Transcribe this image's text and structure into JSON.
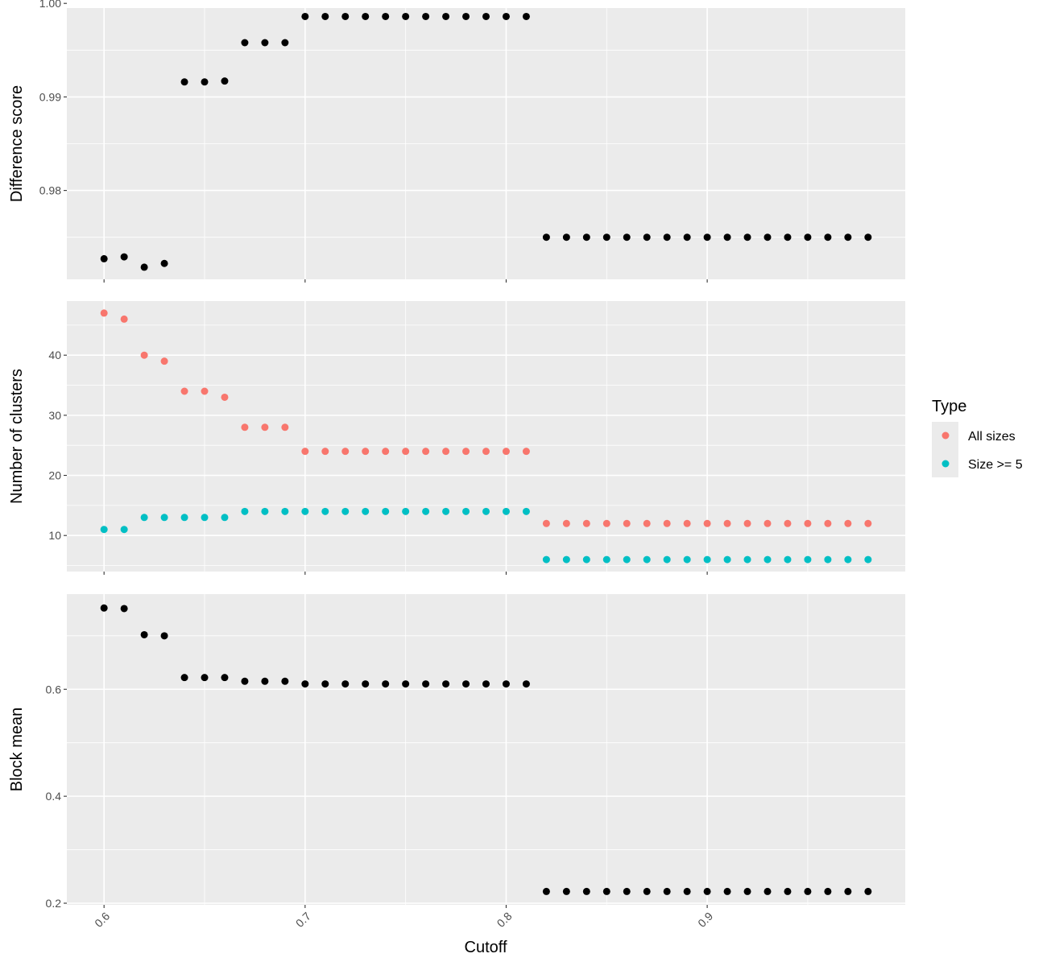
{
  "chart_data": {
    "type": "scatter",
    "xlabel": "Cutoff",
    "x_ticks": [
      "0.6",
      "0.7",
      "0.8",
      "0.9"
    ],
    "x_tick_values": [
      0.6,
      0.7,
      0.8,
      0.9
    ],
    "xlim": [
      0.5815,
      0.9985
    ],
    "legend": {
      "title": "Type",
      "position": "right",
      "entries": [
        {
          "label": "All sizes",
          "color": "#F8766D"
        },
        {
          "label": "Size >= 5",
          "color": "#00BFC4"
        }
      ]
    },
    "grid": true,
    "panel_background": "#EBEBEB",
    "panels": [
      {
        "ylabel": "Difference score",
        "ylim": [
          0.9705,
          0.9995
        ],
        "y_ticks": [
          "0.98",
          "0.99",
          "1.00"
        ],
        "y_tick_values": [
          0.98,
          0.99,
          1.0
        ],
        "series": [
          {
            "color": "#000000",
            "x": [
              0.6,
              0.61,
              0.62,
              0.63,
              0.64,
              0.65,
              0.66,
              0.67,
              0.68,
              0.69,
              0.7,
              0.71,
              0.72,
              0.73,
              0.74,
              0.75,
              0.76,
              0.77,
              0.78,
              0.79,
              0.8,
              0.81,
              0.82,
              0.83,
              0.84,
              0.85,
              0.86,
              0.87,
              0.88,
              0.89,
              0.9,
              0.91,
              0.92,
              0.93,
              0.94,
              0.95,
              0.96,
              0.97,
              0.98
            ],
            "y": [
              0.9727,
              0.9729,
              0.9718,
              0.9722,
              0.9916,
              0.9916,
              0.9917,
              0.9958,
              0.9958,
              0.9958,
              0.9986,
              0.9986,
              0.9986,
              0.9986,
              0.9986,
              0.9986,
              0.9986,
              0.9986,
              0.9986,
              0.9986,
              0.9986,
              0.9986,
              0.975,
              0.975,
              0.975,
              0.975,
              0.975,
              0.975,
              0.975,
              0.975,
              0.975,
              0.975,
              0.975,
              0.975,
              0.975,
              0.975,
              0.975,
              0.975,
              0.975
            ]
          }
        ]
      },
      {
        "ylabel": "Number of clusters",
        "ylim": [
          4,
          49
        ],
        "y_ticks": [
          "10",
          "20",
          "30",
          "40"
        ],
        "y_tick_values": [
          10,
          20,
          30,
          40
        ],
        "series": [
          {
            "name": "All sizes",
            "color": "#F8766D",
            "x": [
              0.6,
              0.61,
              0.62,
              0.63,
              0.64,
              0.65,
              0.66,
              0.67,
              0.68,
              0.69,
              0.7,
              0.71,
              0.72,
              0.73,
              0.74,
              0.75,
              0.76,
              0.77,
              0.78,
              0.79,
              0.8,
              0.81,
              0.82,
              0.83,
              0.84,
              0.85,
              0.86,
              0.87,
              0.88,
              0.89,
              0.9,
              0.91,
              0.92,
              0.93,
              0.94,
              0.95,
              0.96,
              0.97,
              0.98
            ],
            "y": [
              47,
              46,
              40,
              39,
              34,
              34,
              33,
              28,
              28,
              28,
              24,
              24,
              24,
              24,
              24,
              24,
              24,
              24,
              24,
              24,
              24,
              24,
              12,
              12,
              12,
              12,
              12,
              12,
              12,
              12,
              12,
              12,
              12,
              12,
              12,
              12,
              12,
              12,
              12
            ]
          },
          {
            "name": "Size >= 5",
            "color": "#00BFC4",
            "x": [
              0.6,
              0.61,
              0.62,
              0.63,
              0.64,
              0.65,
              0.66,
              0.67,
              0.68,
              0.69,
              0.7,
              0.71,
              0.72,
              0.73,
              0.74,
              0.75,
              0.76,
              0.77,
              0.78,
              0.79,
              0.8,
              0.81,
              0.82,
              0.83,
              0.84,
              0.85,
              0.86,
              0.87,
              0.88,
              0.89,
              0.9,
              0.91,
              0.92,
              0.93,
              0.94,
              0.95,
              0.96,
              0.97,
              0.98
            ],
            "y": [
              11,
              11,
              13,
              13,
              13,
              13,
              13,
              14,
              14,
              14,
              14,
              14,
              14,
              14,
              14,
              14,
              14,
              14,
              14,
              14,
              14,
              14,
              6,
              6,
              6,
              6,
              6,
              6,
              6,
              6,
              6,
              6,
              6,
              6,
              6,
              6,
              6,
              6,
              6
            ]
          }
        ]
      },
      {
        "ylabel": "Block mean",
        "ylim": [
          0.197,
          0.778
        ],
        "y_ticks": [
          "0.2",
          "0.4",
          "0.6"
        ],
        "y_tick_values": [
          0.2,
          0.4,
          0.6
        ],
        "series": [
          {
            "color": "#000000",
            "x": [
              0.6,
              0.61,
              0.62,
              0.63,
              0.64,
              0.65,
              0.66,
              0.67,
              0.68,
              0.69,
              0.7,
              0.71,
              0.72,
              0.73,
              0.74,
              0.75,
              0.76,
              0.77,
              0.78,
              0.79,
              0.8,
              0.81,
              0.82,
              0.83,
              0.84,
              0.85,
              0.86,
              0.87,
              0.88,
              0.89,
              0.9,
              0.91,
              0.92,
              0.93,
              0.94,
              0.95,
              0.96,
              0.97,
              0.98
            ],
            "y": [
              0.752,
              0.751,
              0.702,
              0.7,
              0.622,
              0.622,
              0.622,
              0.615,
              0.615,
              0.615,
              0.61,
              0.61,
              0.61,
              0.61,
              0.61,
              0.61,
              0.61,
              0.61,
              0.61,
              0.61,
              0.61,
              0.61,
              0.222,
              0.222,
              0.222,
              0.222,
              0.222,
              0.222,
              0.222,
              0.222,
              0.222,
              0.222,
              0.222,
              0.222,
              0.222,
              0.222,
              0.222,
              0.222,
              0.222
            ]
          }
        ]
      }
    ]
  }
}
